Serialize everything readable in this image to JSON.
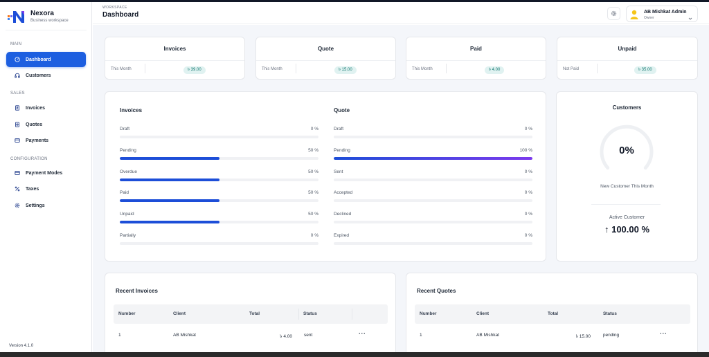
{
  "app": {
    "name": "Nexora",
    "subtitle": "Business workspace",
    "version": "Version 4.1.0"
  },
  "sidebar": {
    "sections": [
      {
        "label": "MAIN"
      },
      {
        "label": "SALES"
      },
      {
        "label": "CONFIGURATION"
      }
    ],
    "items": [
      {
        "label": "Dashboard",
        "icon": "dashboard-gauge-icon",
        "active": true
      },
      {
        "label": "Customers",
        "icon": "headset-icon"
      },
      {
        "label": "Invoices",
        "icon": "invoice-doc-icon"
      },
      {
        "label": "Quotes",
        "icon": "quote-doc-icon"
      },
      {
        "label": "Payments",
        "icon": "credit-card-icon"
      },
      {
        "label": "Payment Modes",
        "icon": "credit-card-icon"
      },
      {
        "label": "Taxes",
        "icon": "percent-icon"
      },
      {
        "label": "Settings",
        "icon": "gear-icon"
      }
    ]
  },
  "header": {
    "workspace_label": "WORKSPACE",
    "title": "Dashboard",
    "user": {
      "name": "AB Mishkat Admin",
      "role": "Owner"
    }
  },
  "stats": [
    {
      "title": "Invoices",
      "label": "This Month",
      "value": "৳ 39.00"
    },
    {
      "title": "Quote",
      "label": "This Month",
      "value": "৳ 15.00"
    },
    {
      "title": "Paid",
      "label": "This Month",
      "value": "৳ 4.00"
    },
    {
      "title": "Unpaid",
      "label": "Not Paid",
      "value": "৳ 35.00"
    }
  ],
  "progress": {
    "invoices": {
      "title": "Invoices",
      "rows": [
        {
          "label": "Draft",
          "pct": "0 %",
          "value": 0
        },
        {
          "label": "Pending",
          "pct": "50 %",
          "value": 50
        },
        {
          "label": "Overdue",
          "pct": "50 %",
          "value": 50
        },
        {
          "label": "Paid",
          "pct": "50 %",
          "value": 50
        },
        {
          "label": "Unpaid",
          "pct": "50 %",
          "value": 50
        },
        {
          "label": "Partially",
          "pct": "0 %",
          "value": 0
        }
      ]
    },
    "quote": {
      "title": "Quote",
      "rows": [
        {
          "label": "Draft",
          "pct": "0 %",
          "value": 0
        },
        {
          "label": "Pending",
          "pct": "100 %",
          "value": 100
        },
        {
          "label": "Sent",
          "pct": "0 %",
          "value": 0
        },
        {
          "label": "Accepted",
          "pct": "0 %",
          "value": 0
        },
        {
          "label": "Declined",
          "pct": "0 %",
          "value": 0
        },
        {
          "label": "Expired",
          "pct": "0 %",
          "value": 0
        }
      ]
    }
  },
  "customers": {
    "title": "Customers",
    "ring_value": "0%",
    "ring_caption": "New Customer This Month",
    "active_label": "Active Customer",
    "active_value": "100.00 %"
  },
  "recent_invoices": {
    "title": "Recent Invoices",
    "columns": [
      "Number",
      "Client",
      "Total",
      "Status"
    ],
    "rows": [
      {
        "number": "1",
        "client": "AB Mishkat",
        "total": "৳ 4.00",
        "status": "sent"
      }
    ]
  },
  "recent_quotes": {
    "title": "Recent Quotes",
    "columns": [
      "Number",
      "Client",
      "Total",
      "Status"
    ],
    "rows": [
      {
        "number": "1",
        "client": "AB Mishkat",
        "total": "৳ 15.00",
        "status": "pending"
      }
    ]
  },
  "colors": {
    "accent": "#1d5fe0",
    "badge_bg": "#e0f2f1",
    "badge_text": "#0f766e",
    "progress_fill": "#1d4ed8"
  }
}
